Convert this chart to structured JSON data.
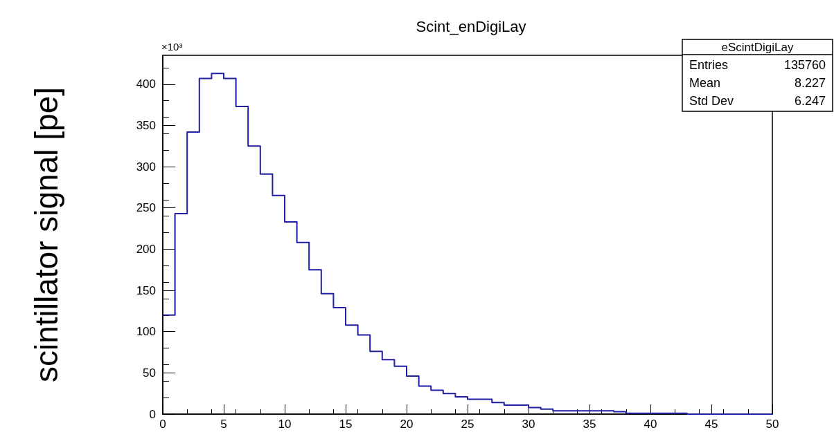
{
  "chart_data": {
    "type": "histogram",
    "title": "Scint_enDigiLay",
    "ylabel": "scintillator signal [pe]",
    "bins": [
      0,
      1,
      2,
      3,
      4,
      5,
      6,
      7,
      8,
      9,
      10,
      11,
      12,
      13,
      14,
      15,
      16,
      17,
      18,
      19,
      20,
      21,
      22,
      23,
      24,
      25,
      26,
      27,
      28,
      29,
      30,
      31,
      32,
      33,
      34,
      35,
      36,
      37,
      38,
      39,
      40,
      41,
      42,
      43,
      44,
      45,
      46,
      47,
      48,
      49,
      50
    ],
    "values": [
      120,
      243,
      342,
      407,
      413,
      407,
      373,
      325,
      291,
      265,
      233,
      208,
      175,
      146,
      129,
      108,
      96,
      76,
      66,
      58,
      46,
      34,
      29,
      25,
      21,
      18,
      18,
      14,
      11,
      11,
      8,
      6,
      4,
      4,
      4,
      4,
      4,
      3,
      1,
      1,
      1,
      1,
      1,
      0,
      0,
      0,
      0,
      0,
      0,
      0
    ],
    "color": "#1f1fa3",
    "xlim": [
      0,
      50
    ],
    "xticks": [
      0,
      5,
      10,
      15,
      20,
      25,
      30,
      35,
      40,
      45,
      50
    ],
    "ylim": [
      0,
      435
    ],
    "yticks": [
      0,
      50,
      100,
      150,
      200,
      250,
      300,
      350,
      400
    ],
    "annotations": [
      "×10³",
      "eScintDigiLay",
      "Entries",
      "135760",
      "Mean",
      "8.227",
      "Std Dev",
      "6.247"
    ],
    "grid": false
  }
}
